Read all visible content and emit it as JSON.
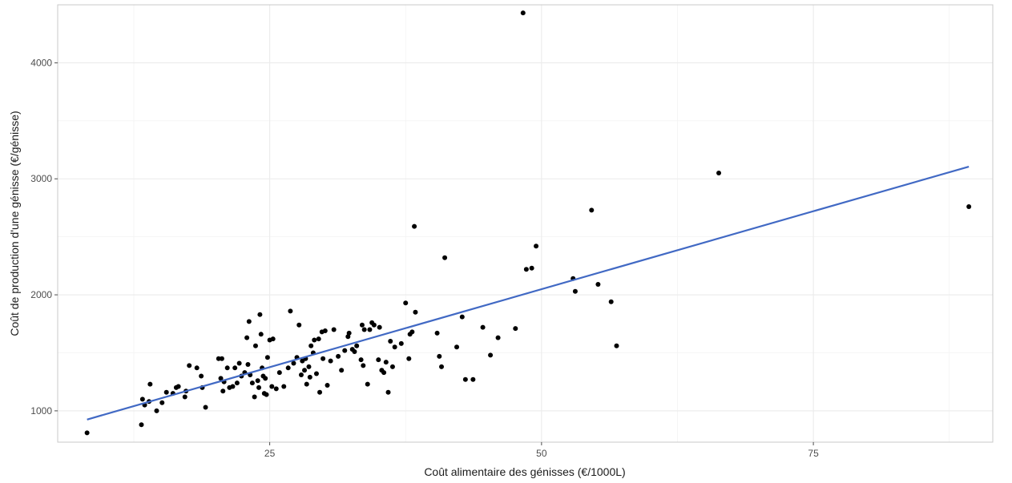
{
  "chart_data": {
    "type": "scatter",
    "title": "",
    "xlabel": "Coût alimentaire des génisses (€/1000L)",
    "ylabel": "Coût de production d'une génisse (€/génisse)",
    "xlim": [
      5.5,
      91.5
    ],
    "ylim": [
      730,
      4500
    ],
    "x_ticks": [
      25,
      50,
      75
    ],
    "y_ticks": [
      1000,
      2000,
      3000,
      4000
    ],
    "x_tick_labels": [
      "25",
      "50",
      "75"
    ],
    "y_tick_labels": [
      "1000",
      "2000",
      "3000",
      "4000"
    ],
    "grid": true,
    "legend": "none",
    "colors": {
      "points": "#000000",
      "trend": "#4169c4",
      "grid_major": "#ebebeb",
      "grid_minor": "#f3f3f3",
      "panel_border": "#c8c8c8"
    },
    "trend_line": {
      "x": [
        8.2,
        89.3
      ],
      "y": [
        925,
        3105
      ]
    },
    "points": [
      [
        8.2,
        810
      ],
      [
        13.2,
        880
      ],
      [
        13.3,
        1100
      ],
      [
        13.5,
        1050
      ],
      [
        13.9,
        1080
      ],
      [
        14.0,
        1230
      ],
      [
        14.6,
        1000
      ],
      [
        15.1,
        1070
      ],
      [
        15.5,
        1160
      ],
      [
        16.1,
        1150
      ],
      [
        16.4,
        1200
      ],
      [
        16.6,
        1210
      ],
      [
        17.2,
        1120
      ],
      [
        17.3,
        1170
      ],
      [
        17.6,
        1390
      ],
      [
        18.3,
        1370
      ],
      [
        18.7,
        1300
      ],
      [
        18.8,
        1200
      ],
      [
        19.1,
        1030
      ],
      [
        20.3,
        1450
      ],
      [
        20.5,
        1280
      ],
      [
        20.6,
        1450
      ],
      [
        20.7,
        1170
      ],
      [
        20.8,
        1250
      ],
      [
        21.1,
        1370
      ],
      [
        21.3,
        1200
      ],
      [
        21.6,
        1210
      ],
      [
        21.8,
        1370
      ],
      [
        22.0,
        1240
      ],
      [
        22.2,
        1410
      ],
      [
        22.4,
        1300
      ],
      [
        22.7,
        1330
      ],
      [
        22.9,
        1630
      ],
      [
        23.0,
        1400
      ],
      [
        23.1,
        1770
      ],
      [
        23.2,
        1310
      ],
      [
        23.4,
        1240
      ],
      [
        23.6,
        1120
      ],
      [
        23.7,
        1560
      ],
      [
        23.9,
        1260
      ],
      [
        24.0,
        1200
      ],
      [
        24.1,
        1830
      ],
      [
        24.2,
        1660
      ],
      [
        24.3,
        1370
      ],
      [
        24.4,
        1300
      ],
      [
        24.5,
        1150
      ],
      [
        24.6,
        1280
      ],
      [
        24.7,
        1140
      ],
      [
        24.8,
        1460
      ],
      [
        25.0,
        1610
      ],
      [
        25.2,
        1210
      ],
      [
        25.3,
        1620
      ],
      [
        25.6,
        1190
      ],
      [
        25.9,
        1330
      ],
      [
        26.3,
        1210
      ],
      [
        26.7,
        1370
      ],
      [
        26.9,
        1860
      ],
      [
        27.2,
        1410
      ],
      [
        27.5,
        1460
      ],
      [
        27.7,
        1740
      ],
      [
        27.9,
        1310
      ],
      [
        28.0,
        1430
      ],
      [
        28.2,
        1350
      ],
      [
        28.3,
        1450
      ],
      [
        28.4,
        1230
      ],
      [
        28.6,
        1380
      ],
      [
        28.7,
        1290
      ],
      [
        28.8,
        1560
      ],
      [
        29.0,
        1500
      ],
      [
        29.1,
        1610
      ],
      [
        29.3,
        1320
      ],
      [
        29.5,
        1620
      ],
      [
        29.6,
        1160
      ],
      [
        29.8,
        1680
      ],
      [
        29.9,
        1450
      ],
      [
        30.1,
        1690
      ],
      [
        30.3,
        1220
      ],
      [
        30.6,
        1430
      ],
      [
        30.9,
        1700
      ],
      [
        31.3,
        1470
      ],
      [
        31.6,
        1350
      ],
      [
        31.9,
        1520
      ],
      [
        32.2,
        1640
      ],
      [
        32.3,
        1670
      ],
      [
        32.6,
        1530
      ],
      [
        32.8,
        1510
      ],
      [
        33.0,
        1560
      ],
      [
        33.4,
        1440
      ],
      [
        33.5,
        1740
      ],
      [
        33.6,
        1390
      ],
      [
        33.7,
        1700
      ],
      [
        34.0,
        1230
      ],
      [
        34.2,
        1700
      ],
      [
        34.4,
        1760
      ],
      [
        34.6,
        1740
      ],
      [
        35.0,
        1440
      ],
      [
        35.1,
        1720
      ],
      [
        35.3,
        1350
      ],
      [
        35.5,
        1330
      ],
      [
        35.7,
        1420
      ],
      [
        35.9,
        1160
      ],
      [
        36.1,
        1600
      ],
      [
        36.3,
        1380
      ],
      [
        36.5,
        1550
      ],
      [
        37.1,
        1580
      ],
      [
        37.5,
        1930
      ],
      [
        37.8,
        1450
      ],
      [
        37.9,
        1660
      ],
      [
        38.1,
        1680
      ],
      [
        38.3,
        2590
      ],
      [
        38.4,
        1850
      ],
      [
        40.4,
        1670
      ],
      [
        40.6,
        1470
      ],
      [
        40.8,
        1380
      ],
      [
        41.1,
        2320
      ],
      [
        42.2,
        1550
      ],
      [
        42.7,
        1810
      ],
      [
        43.0,
        1270
      ],
      [
        43.7,
        1270
      ],
      [
        44.6,
        1720
      ],
      [
        45.3,
        1480
      ],
      [
        46.0,
        1630
      ],
      [
        47.6,
        1710
      ],
      [
        48.3,
        4430
      ],
      [
        48.6,
        2220
      ],
      [
        49.1,
        2230
      ],
      [
        49.5,
        2420
      ],
      [
        52.9,
        2140
      ],
      [
        53.1,
        2030
      ],
      [
        54.6,
        2730
      ],
      [
        55.2,
        2090
      ],
      [
        56.4,
        1940
      ],
      [
        56.9,
        1560
      ],
      [
        66.3,
        3050
      ],
      [
        89.3,
        2760
      ]
    ]
  }
}
